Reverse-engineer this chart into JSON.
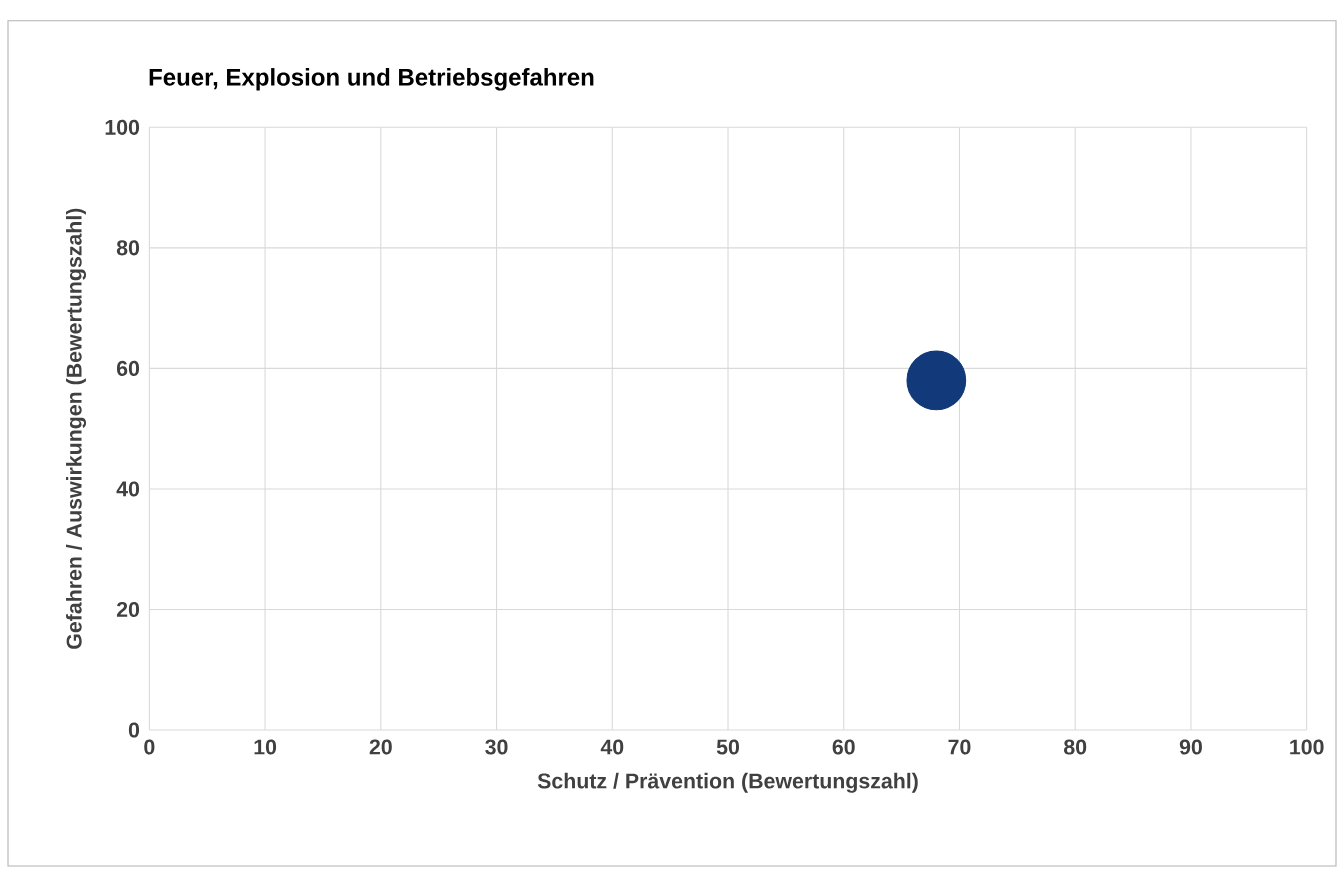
{
  "chart_data": {
    "type": "scatter",
    "title": "Feuer, Explosion und Betriebsgefahren",
    "xlabel": "Schutz / Prävention  (Bewertungszahl)",
    "ylabel": "Gefahren / Auswirkungen  (Bewertungszahl)",
    "x": [
      68
    ],
    "values": [
      58
    ],
    "color": "#123a7a",
    "xlim": [
      0,
      100
    ],
    "xticks": [
      0,
      10,
      20,
      30,
      40,
      50,
      60,
      70,
      80,
      90,
      100
    ],
    "ylim": [
      0,
      100
    ],
    "yticks": [
      0,
      20,
      40,
      60,
      80,
      100
    ],
    "grid": true
  }
}
